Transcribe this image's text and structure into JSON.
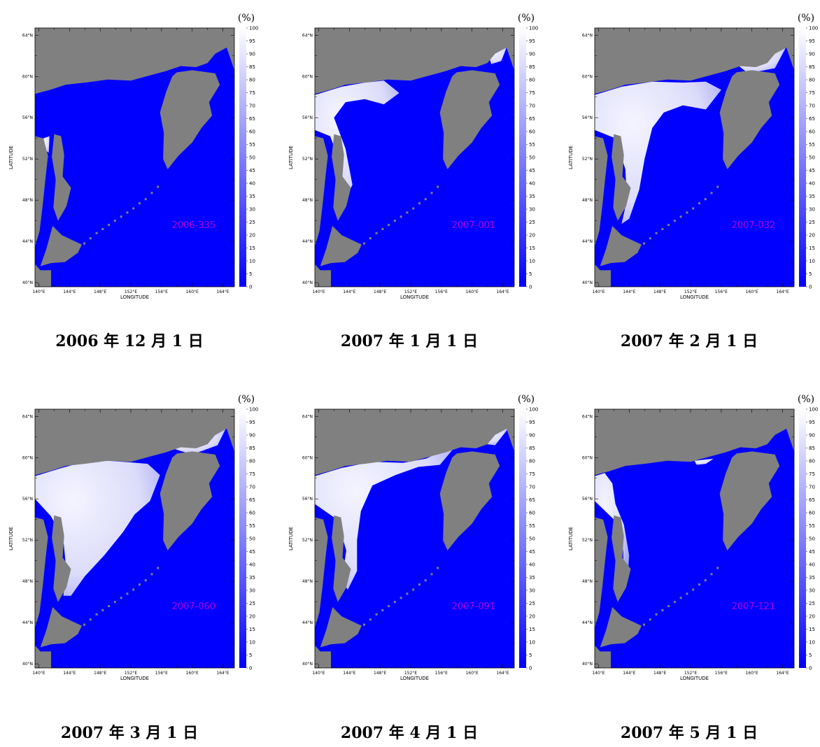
{
  "axes": {
    "xlabel": "LONGITUDE",
    "ylabel": "LATITUDE",
    "xticks": [
      "140°E",
      "144°E",
      "148°E",
      "152°E",
      "156°E",
      "160°E",
      "164°E"
    ],
    "yticks": [
      "40°N",
      "44°N",
      "48°N",
      "52°N",
      "56°N",
      "60°N",
      "64°N"
    ]
  },
  "colorbar": {
    "unit": "(%)",
    "ticks": [
      0,
      5,
      10,
      15,
      20,
      25,
      30,
      35,
      40,
      45,
      50,
      55,
      60,
      65,
      70,
      75,
      80,
      85,
      90,
      95,
      100
    ]
  },
  "panels": [
    {
      "stamp": "2006-335",
      "caption": "2006 年 12 月 1 日"
    },
    {
      "stamp": "2007-001",
      "caption": "2007 年 1 月 1 日"
    },
    {
      "stamp": "2007-032",
      "caption": "2007 年 2 月 1 日"
    },
    {
      "stamp": "2007-060",
      "caption": "2007 年 3 月 1 日"
    },
    {
      "stamp": "2007-091",
      "caption": "2007 年 4 月 1 日"
    },
    {
      "stamp": "2007-121",
      "caption": "2007 年 5 月 1 日"
    }
  ]
}
